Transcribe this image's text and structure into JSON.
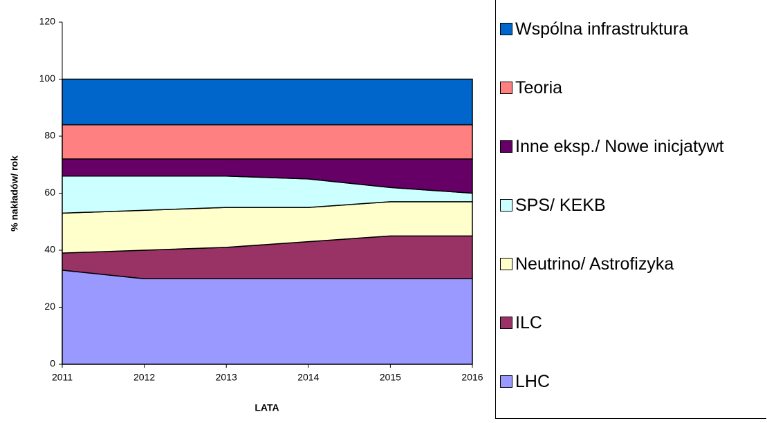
{
  "chart_data": {
    "type": "stacked_area",
    "x_label": "LATA",
    "y_label": "% nakładów/ rok",
    "x": [
      2011,
      2012,
      2013,
      2014,
      2015,
      2016
    ],
    "xlim": [
      2011,
      2016
    ],
    "xticks": [
      2011,
      2012,
      2013,
      2014,
      2015,
      2016
    ],
    "ylim": [
      0,
      120
    ],
    "yticks": [
      0,
      20,
      40,
      60,
      80,
      100,
      120
    ],
    "series": [
      {
        "name": "LHC",
        "color": "#9999ff",
        "values": [
          33,
          30,
          30,
          30,
          30,
          30
        ]
      },
      {
        "name": "ILC",
        "color": "#993366",
        "values": [
          6,
          10,
          11,
          13,
          15,
          15
        ]
      },
      {
        "name": "Neutrino/ Astrofizyka",
        "color": "#ffffcc",
        "values": [
          14,
          14,
          14,
          12,
          12,
          12
        ]
      },
      {
        "name": "SPS/ KEKB",
        "color": "#ccffff",
        "values": [
          13,
          12,
          11,
          10,
          5,
          3
        ]
      },
      {
        "name": "Inne eksp./ Nowe inicjatywt",
        "color": "#660066",
        "values": [
          6,
          6,
          6,
          7,
          10,
          12
        ]
      },
      {
        "name": "Teoria",
        "color": "#ff8080",
        "values": [
          12,
          12,
          12,
          12,
          12,
          12
        ]
      },
      {
        "name": "Wspólna infrastruktura",
        "color": "#0066cc",
        "values": [
          16,
          16,
          16,
          16,
          16,
          16
        ]
      }
    ]
  }
}
